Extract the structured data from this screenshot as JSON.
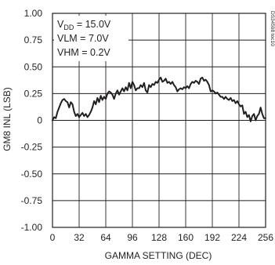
{
  "chart_data": {
    "type": "line",
    "title": "",
    "xlabel": "GAMMA SETTING (DEC)",
    "ylabel": "GM8 INL (LSB)",
    "xlim": [
      0,
      256
    ],
    "ylim": [
      -1.0,
      1.0
    ],
    "x_ticks": [
      0,
      32,
      64,
      96,
      128,
      160,
      192,
      224,
      256
    ],
    "y_ticks": [
      1.0,
      0.75,
      0.5,
      0.25,
      0,
      -0.25,
      -0.5,
      -0.75,
      -1.0
    ],
    "x_tick_labels": [
      "0",
      "32",
      "64",
      "96",
      "128",
      "160",
      "192",
      "224",
      "256"
    ],
    "y_tick_labels": [
      "1.00",
      "0.75",
      "0.50",
      "0.25",
      "0",
      "-0.25",
      "-0.50",
      "-0.75",
      "-1.00"
    ],
    "grid": true,
    "legend_lines": {
      "vdd_main": "V",
      "vdd_sub": "DD",
      "vdd_rest": " = 15.0V",
      "vlm": "VLM = 7.0V",
      "vhm": "VHM = 0.2V"
    },
    "side_id": "DS34598 toc10",
    "series": [
      {
        "x": [
          0,
          2,
          4,
          6,
          8,
          10,
          12,
          14,
          16,
          18,
          20,
          22,
          24,
          26,
          28,
          30,
          32,
          34,
          36,
          38,
          40,
          42,
          44,
          46,
          48,
          50,
          52,
          54,
          56,
          58,
          60,
          62,
          64,
          66,
          68,
          70,
          72,
          74,
          76,
          78,
          80,
          82,
          84,
          86,
          88,
          90,
          92,
          94,
          96,
          98,
          100,
          102,
          104,
          106,
          108,
          110,
          112,
          114,
          116,
          118,
          120,
          122,
          124,
          126,
          128,
          130,
          132,
          134,
          136,
          138,
          140,
          142,
          144,
          146,
          148,
          150,
          152,
          154,
          156,
          158,
          160,
          162,
          164,
          166,
          168,
          170,
          172,
          174,
          176,
          178,
          180,
          182,
          184,
          186,
          188,
          190,
          192,
          194,
          196,
          198,
          200,
          202,
          204,
          206,
          208,
          210,
          212,
          214,
          216,
          218,
          220,
          222,
          224,
          226,
          228,
          230,
          232,
          234,
          236,
          238,
          240,
          242,
          244,
          246,
          248,
          250,
          252,
          254,
          256
        ],
        "values": [
          0.0,
          0.03,
          0.02,
          0.08,
          0.12,
          0.16,
          0.19,
          0.2,
          0.18,
          0.17,
          0.12,
          0.17,
          0.15,
          0.08,
          0.04,
          0.06,
          0.03,
          0.05,
          0.07,
          0.04,
          0.06,
          0.03,
          0.05,
          0.08,
          0.12,
          0.18,
          0.15,
          0.21,
          0.17,
          0.23,
          0.19,
          0.22,
          0.2,
          0.25,
          0.27,
          0.26,
          0.24,
          0.2,
          0.25,
          0.28,
          0.24,
          0.27,
          0.3,
          0.27,
          0.31,
          0.28,
          0.35,
          0.3,
          0.36,
          0.33,
          0.28,
          0.3,
          0.3,
          0.33,
          0.31,
          0.35,
          0.28,
          0.26,
          0.33,
          0.31,
          0.34,
          0.33,
          0.36,
          0.35,
          0.38,
          0.4,
          0.36,
          0.37,
          0.39,
          0.35,
          0.36,
          0.34,
          0.36,
          0.33,
          0.31,
          0.27,
          0.29,
          0.3,
          0.29,
          0.31,
          0.3,
          0.32,
          0.3,
          0.34,
          0.36,
          0.35,
          0.37,
          0.36,
          0.34,
          0.39,
          0.4,
          0.37,
          0.38,
          0.36,
          0.33,
          0.27,
          0.28,
          0.27,
          0.25,
          0.26,
          0.24,
          0.22,
          0.22,
          0.2,
          0.22,
          0.2,
          0.19,
          0.21,
          0.18,
          0.19,
          0.16,
          0.18,
          0.15,
          0.13,
          0.14,
          0.06,
          0.08,
          0.03,
          0.05,
          -0.01,
          0.04,
          0.06,
          0.0,
          0.04,
          0.06,
          0.12,
          0.06,
          0.02,
          0.02
        ]
      }
    ]
  }
}
